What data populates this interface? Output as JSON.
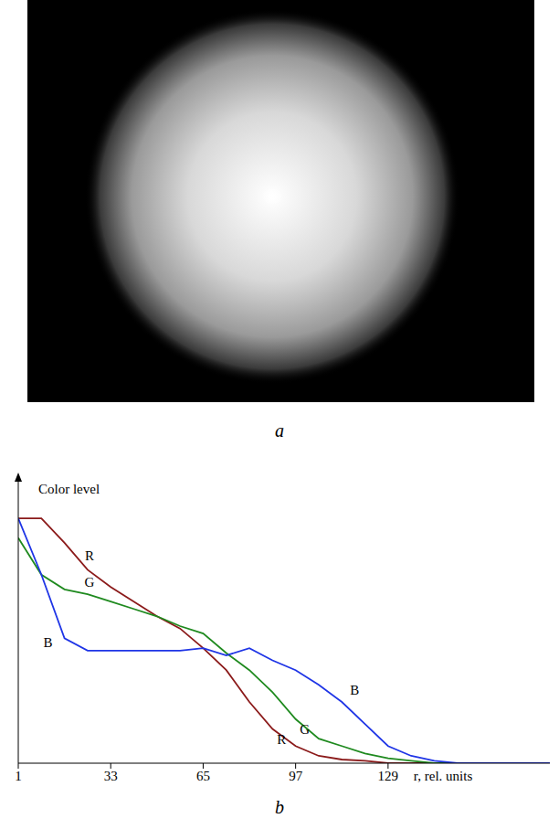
{
  "image_panel": {
    "panel_label": "a"
  },
  "chart_data": {
    "type": "line",
    "panel_label": "b",
    "y_label": "Color level",
    "x_label": "r, rel. units",
    "x": [
      1,
      9,
      17,
      25,
      33,
      41,
      49,
      57,
      65,
      73,
      81,
      89,
      97,
      105,
      113,
      121,
      129,
      137,
      145,
      153,
      161,
      169,
      177,
      185
    ],
    "series": [
      {
        "name": "R",
        "color": "#8b1a1a",
        "values": [
          1.0,
          1.0,
          0.9,
          0.79,
          0.72,
          0.66,
          0.6,
          0.55,
          0.47,
          0.38,
          0.25,
          0.14,
          0.07,
          0.03,
          0.015,
          0.01,
          0,
          0,
          0,
          0,
          0,
          0,
          0,
          0
        ]
      },
      {
        "name": "G",
        "color": "#1f8a1f",
        "values": [
          0.92,
          0.77,
          0.71,
          0.69,
          0.66,
          0.63,
          0.6,
          0.56,
          0.53,
          0.45,
          0.38,
          0.29,
          0.18,
          0.1,
          0.07,
          0.04,
          0.02,
          0.01,
          0,
          0,
          0,
          0,
          0,
          0
        ]
      },
      {
        "name": "B",
        "color": "#1f35e6",
        "values": [
          1.0,
          0.77,
          0.51,
          0.46,
          0.46,
          0.46,
          0.46,
          0.46,
          0.47,
          0.44,
          0.47,
          0.42,
          0.38,
          0.32,
          0.25,
          0.16,
          0.07,
          0.03,
          0.01,
          0,
          0,
          0,
          0,
          0
        ]
      }
    ],
    "xlim": [
      1,
      185
    ],
    "xticks": [
      1,
      33,
      65,
      97,
      129
    ],
    "ylim": [
      0,
      1.12
    ],
    "yticks": [
      0.25,
      0.5,
      0.75,
      1
    ],
    "tick_labels": "x",
    "grid": false
  }
}
